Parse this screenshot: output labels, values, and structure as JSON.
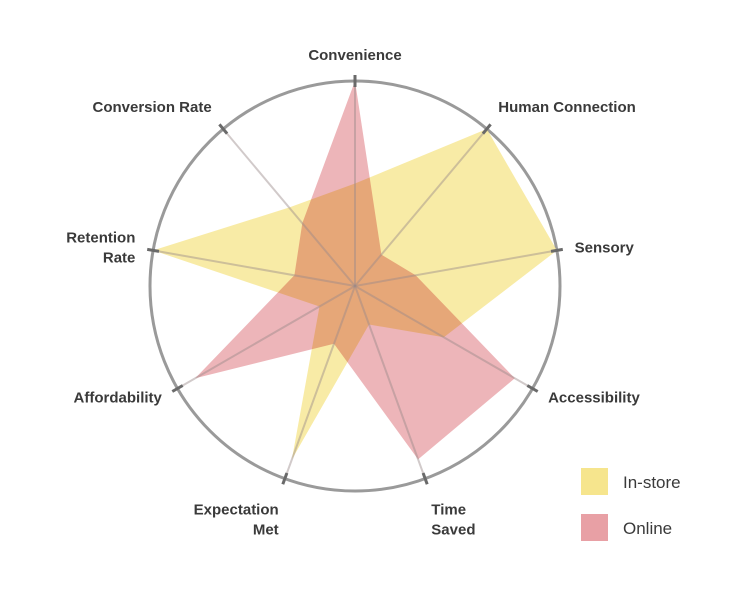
{
  "chart_data": {
    "type": "radar",
    "axes": [
      [
        "Convenience"
      ],
      [
        "Human Connection"
      ],
      [
        "Sensory"
      ],
      [
        "Accessibility"
      ],
      [
        "Time",
        "Saved"
      ],
      [
        "Expectation",
        "Met"
      ],
      [
        "Affordability"
      ],
      [
        "Retention",
        "Rate"
      ],
      [
        "Conversion Rate"
      ]
    ],
    "range": [
      0,
      10
    ],
    "series": [
      {
        "name": "In-store",
        "color": "#f6e58d",
        "values": [
          5,
          10,
          10,
          5,
          2,
          9,
          2,
          10,
          5
        ]
      },
      {
        "name": "Online",
        "color": "#e8a0a5",
        "values": [
          10,
          2,
          3,
          9,
          9,
          3,
          9,
          3,
          4
        ]
      }
    ],
    "legend_position": "bottom-right"
  }
}
